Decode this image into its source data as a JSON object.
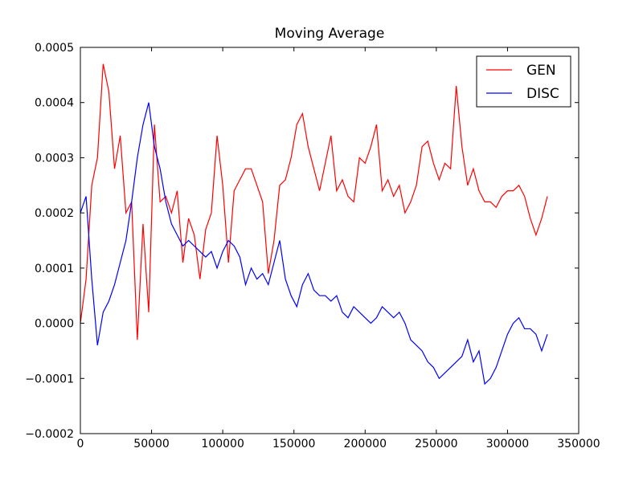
{
  "chart_data": {
    "type": "line",
    "title": "Moving Average",
    "x": [
      0,
      4000,
      8000,
      12000,
      16000,
      20000,
      24000,
      28000,
      32000,
      36000,
      40000,
      44000,
      48000,
      52000,
      56000,
      60000,
      64000,
      68000,
      72000,
      76000,
      80000,
      84000,
      88000,
      92000,
      96000,
      100000,
      104000,
      108000,
      112000,
      116000,
      120000,
      124000,
      128000,
      132000,
      136000,
      140000,
      144000,
      148000,
      152000,
      156000,
      160000,
      164000,
      168000,
      172000,
      176000,
      180000,
      184000,
      188000,
      192000,
      196000,
      200000,
      204000,
      208000,
      212000,
      216000,
      220000,
      224000,
      228000,
      232000,
      236000,
      240000,
      244000,
      248000,
      252000,
      256000,
      260000,
      264000,
      268000,
      272000,
      276000,
      280000,
      284000,
      288000,
      292000,
      296000,
      300000,
      304000,
      308000,
      312000,
      316000,
      320000,
      324000,
      328000
    ],
    "series": [
      {
        "name": "GEN",
        "color": "#ff0000",
        "values": [
          0.0,
          8e-05,
          0.00025,
          0.0003,
          0.00047,
          0.00042,
          0.00028,
          0.00034,
          0.0002,
          0.00022,
          -3e-05,
          0.00018,
          2e-05,
          0.00036,
          0.00022,
          0.00023,
          0.0002,
          0.00024,
          0.00011,
          0.00019,
          0.00016,
          8e-05,
          0.00017,
          0.0002,
          0.00034,
          0.00025,
          0.00011,
          0.00024,
          0.00026,
          0.00028,
          0.00028,
          0.00025,
          0.00022,
          9e-05,
          0.00015,
          0.00025,
          0.00026,
          0.0003,
          0.00036,
          0.00038,
          0.00032,
          0.00028,
          0.00024,
          0.00029,
          0.00034,
          0.00024,
          0.00026,
          0.00023,
          0.00022,
          0.0003,
          0.00029,
          0.00032,
          0.00036,
          0.00024,
          0.00026,
          0.00023,
          0.00025,
          0.0002,
          0.00022,
          0.00025,
          0.00032,
          0.00033,
          0.00029,
          0.00026,
          0.00029,
          0.00028,
          0.00043,
          0.00032,
          0.00025,
          0.00028,
          0.00024,
          0.00022,
          0.00022,
          0.00021,
          0.00023,
          0.00024,
          0.00024,
          0.00025,
          0.00023,
          0.00019,
          0.00016,
          0.00019,
          0.00023
        ]
      },
      {
        "name": "DISC",
        "color": "#0000ff",
        "values": [
          0.0002,
          0.00023,
          8e-05,
          -4e-05,
          2e-05,
          4e-05,
          7e-05,
          0.00011,
          0.00015,
          0.00022,
          0.0003,
          0.00036,
          0.0004,
          0.00032,
          0.00028,
          0.00022,
          0.00018,
          0.00016,
          0.00014,
          0.00015,
          0.00014,
          0.00013,
          0.00012,
          0.00013,
          0.0001,
          0.00013,
          0.00015,
          0.00014,
          0.00012,
          7e-05,
          0.0001,
          8e-05,
          9e-05,
          7e-05,
          0.00011,
          0.00015,
          8e-05,
          5e-05,
          3e-05,
          7e-05,
          9e-05,
          6e-05,
          5e-05,
          5e-05,
          4e-05,
          5e-05,
          2e-05,
          1e-05,
          3e-05,
          2e-05,
          1e-05,
          0.0,
          1e-05,
          3e-05,
          2e-05,
          1e-05,
          2e-05,
          0.0,
          -3e-05,
          -4e-05,
          -5e-05,
          -7e-05,
          -8e-05,
          -0.0001,
          -9e-05,
          -8e-05,
          -7e-05,
          -6e-05,
          -3e-05,
          -7e-05,
          -5e-05,
          -0.00011,
          -0.0001,
          -8e-05,
          -5e-05,
          -2e-05,
          0.0,
          1e-05,
          -1e-05,
          -1e-05,
          -2e-05,
          -5e-05,
          -2e-05
        ]
      }
    ],
    "xlim": [
      0,
      350000
    ],
    "xticks": [
      0,
      50000,
      100000,
      150000,
      200000,
      250000,
      300000,
      350000
    ],
    "ylim": [
      -0.0002,
      0.0005
    ],
    "yticks": [
      {
        "value": -0.0002,
        "label": "−0.0002"
      },
      {
        "value": -0.0001,
        "label": "−0.0001"
      },
      {
        "value": 0.0,
        "label": "0.0000"
      },
      {
        "value": 0.0001,
        "label": "0.0001"
      },
      {
        "value": 0.0002,
        "label": "0.0002"
      },
      {
        "value": 0.0003,
        "label": "0.0003"
      },
      {
        "value": 0.0004,
        "label": "0.0004"
      },
      {
        "value": 0.0005,
        "label": "0.0005"
      }
    ],
    "grid": false,
    "legend": "upper right"
  }
}
